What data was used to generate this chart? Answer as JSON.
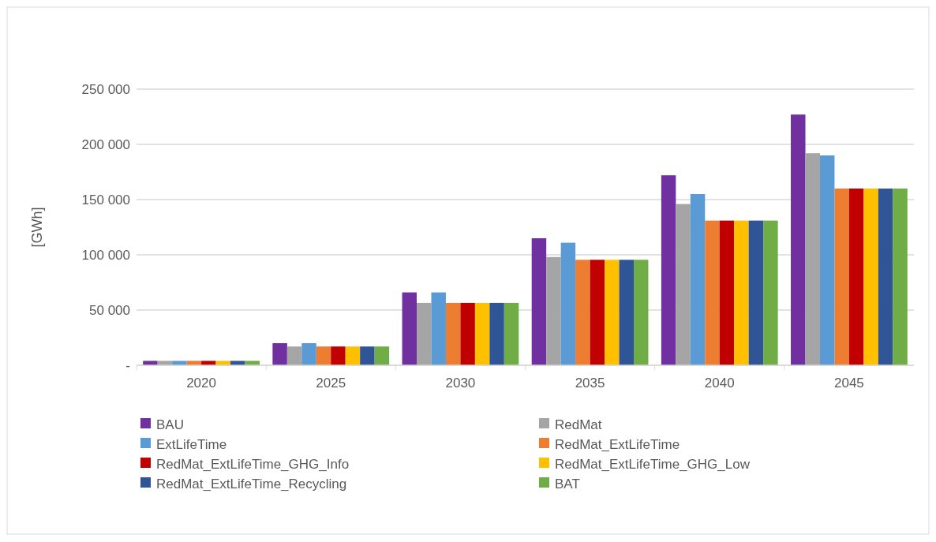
{
  "chart_data": {
    "type": "bar",
    "ylabel": "[GWh]",
    "categories": [
      "2020",
      "2025",
      "2030",
      "2035",
      "2040",
      "2045"
    ],
    "series": [
      {
        "name": "BAU",
        "color": "#7030a0",
        "values": [
          4000,
          20000,
          66000,
          115000,
          172000,
          227000
        ]
      },
      {
        "name": "RedMat",
        "color": "#a5a5a5",
        "values": [
          4000,
          17000,
          56500,
          98000,
          146000,
          192000
        ]
      },
      {
        "name": "ExtLifeTime",
        "color": "#5b9bd5",
        "values": [
          4000,
          20000,
          66000,
          111000,
          155000,
          190000
        ]
      },
      {
        "name": "RedMat_ExtLifeTime",
        "color": "#ed7d31",
        "values": [
          4000,
          17000,
          56500,
          95500,
          131000,
          160000
        ]
      },
      {
        "name": "RedMat_ExtLifeTime_GHG_Info",
        "color": "#c00000",
        "values": [
          4000,
          17000,
          56500,
          95500,
          131000,
          160000
        ]
      },
      {
        "name": "RedMat_ExtLifeTime_GHG_Low",
        "color": "#ffc000",
        "values": [
          4000,
          17000,
          56500,
          95500,
          131000,
          160000
        ]
      },
      {
        "name": "RedMat_ExtLifeTime_Recycling",
        "color": "#2f5597",
        "values": [
          4000,
          17000,
          56500,
          95500,
          131000,
          160000
        ]
      },
      {
        "name": "BAT",
        "color": "#70ad47",
        "values": [
          4000,
          17000,
          56500,
          95500,
          131000,
          160000
        ]
      }
    ],
    "ylim": [
      0,
      250000
    ],
    "yticks": [
      {
        "value": 0,
        "label": "-"
      },
      {
        "value": 50000,
        "label": "50 000"
      },
      {
        "value": 100000,
        "label": "100 000"
      },
      {
        "value": 150000,
        "label": "150 000"
      },
      {
        "value": 200000,
        "label": "200 000"
      },
      {
        "value": 250000,
        "label": "250 000"
      }
    ],
    "grid": "y",
    "legend": "bottom"
  }
}
